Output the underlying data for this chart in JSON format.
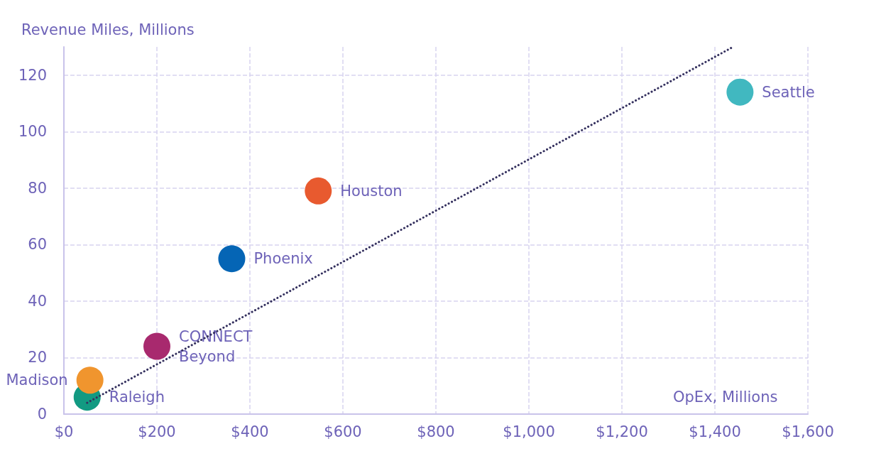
{
  "chart_data": {
    "type": "scatter",
    "xlabel": "OpEx, Millions",
    "ylabel": "Revenue Miles, Millions",
    "xlim": [
      0,
      1600
    ],
    "ylim": [
      0,
      130
    ],
    "xticks": [
      {
        "value": 0,
        "label": "$0"
      },
      {
        "value": 200,
        "label": "$200"
      },
      {
        "value": 400,
        "label": "$400"
      },
      {
        "value": 600,
        "label": "$600"
      },
      {
        "value": 800,
        "label": "$800"
      },
      {
        "value": 1000,
        "label": "$1,000"
      },
      {
        "value": 1200,
        "label": "$1,200"
      },
      {
        "value": 1400,
        "label": "$1,400"
      },
      {
        "value": 1600,
        "label": "$1,600"
      }
    ],
    "yticks": [
      0,
      20,
      40,
      60,
      80,
      100,
      120
    ],
    "grid": true,
    "marker": "circle",
    "series": [
      {
        "name": "Raleigh",
        "color": "#129a82",
        "x": [
          50
        ],
        "values": [
          6
        ]
      },
      {
        "name": "Madison",
        "color": "#f0952e",
        "x": [
          56
        ],
        "values": [
          12
        ]
      },
      {
        "name": "CONNECT Beyond",
        "color": "#a8296e",
        "x": [
          200
        ],
        "values": [
          24
        ]
      },
      {
        "name": "Phoenix",
        "color": "#0565b5",
        "x": [
          361
        ],
        "values": [
          55
        ]
      },
      {
        "name": "Houston",
        "color": "#e85a2f",
        "x": [
          547
        ],
        "values": [
          79
        ]
      },
      {
        "name": "Seattle",
        "color": "#41b8c0",
        "x": [
          1454
        ],
        "values": [
          114
        ]
      },
      {
        "type": "line",
        "color": "#34305e",
        "line_style": "dotted",
        "marker": "none",
        "x": [
          50,
          1439
        ],
        "values": [
          4,
          130
        ]
      }
    ]
  }
}
